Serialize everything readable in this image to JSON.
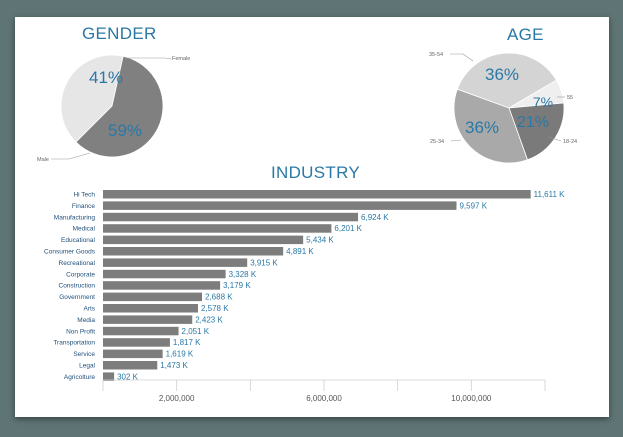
{
  "chart_data": [
    {
      "type": "pie",
      "title": "GENDER",
      "slices": [
        {
          "label": "Female",
          "value": 41,
          "pct_label": "41%",
          "color": "#e6e6e6"
        },
        {
          "label": "Male",
          "value": 59,
          "pct_label": "59%",
          "color": "#808080"
        }
      ]
    },
    {
      "type": "pie",
      "title": "AGE",
      "slices": [
        {
          "label": "35-54",
          "value": 36,
          "pct_label": "36%",
          "color": "#d4d4d4"
        },
        {
          "label": "55",
          "value": 7,
          "pct_label": "7%",
          "color": "#efefef"
        },
        {
          "label": "18-24",
          "value": 21,
          "pct_label": "21%",
          "color": "#7a7a7a"
        },
        {
          "label": "25-34",
          "value": 36,
          "pct_label": "36%",
          "color": "#a9a9a9"
        }
      ]
    },
    {
      "type": "bar",
      "orientation": "horizontal",
      "title": "INDUSTRY",
      "categories": [
        "Hi Tech",
        "Finance",
        "Manufacturing",
        "Medical",
        "Educational",
        "Consumer Goods",
        "Recreational",
        "Corporate",
        "Construction",
        "Government",
        "Arts",
        "Media",
        "Non Profit",
        "Transportation",
        "Service",
        "Legal",
        "Agricolture"
      ],
      "values": [
        11611000,
        9597000,
        6924000,
        6201000,
        5434000,
        4891000,
        3915000,
        3328000,
        3179000,
        2688000,
        2578000,
        2423000,
        2051000,
        1817000,
        1619000,
        1473000,
        302000
      ],
      "value_labels": [
        "11,611 K",
        "9,597 K",
        "6,924 K",
        "6,201 K",
        "5,434 K",
        "4,891 K",
        "3,915 K",
        "3,328 K",
        "3,179 K",
        "2,688 K",
        "2,578 K",
        "2,423 K",
        "2,051 K",
        "1,817 K",
        "1,619 K",
        "1,473 K",
        "302 K"
      ],
      "xlim": [
        0,
        12000000
      ],
      "xticks": [
        2000000,
        6000000,
        10000000
      ],
      "xtick_labels": [
        "2,000,000",
        "6,000,000",
        "10,000,000"
      ],
      "bar_color": "#7d7d7d",
      "label_color": "#2a78a6"
    }
  ]
}
